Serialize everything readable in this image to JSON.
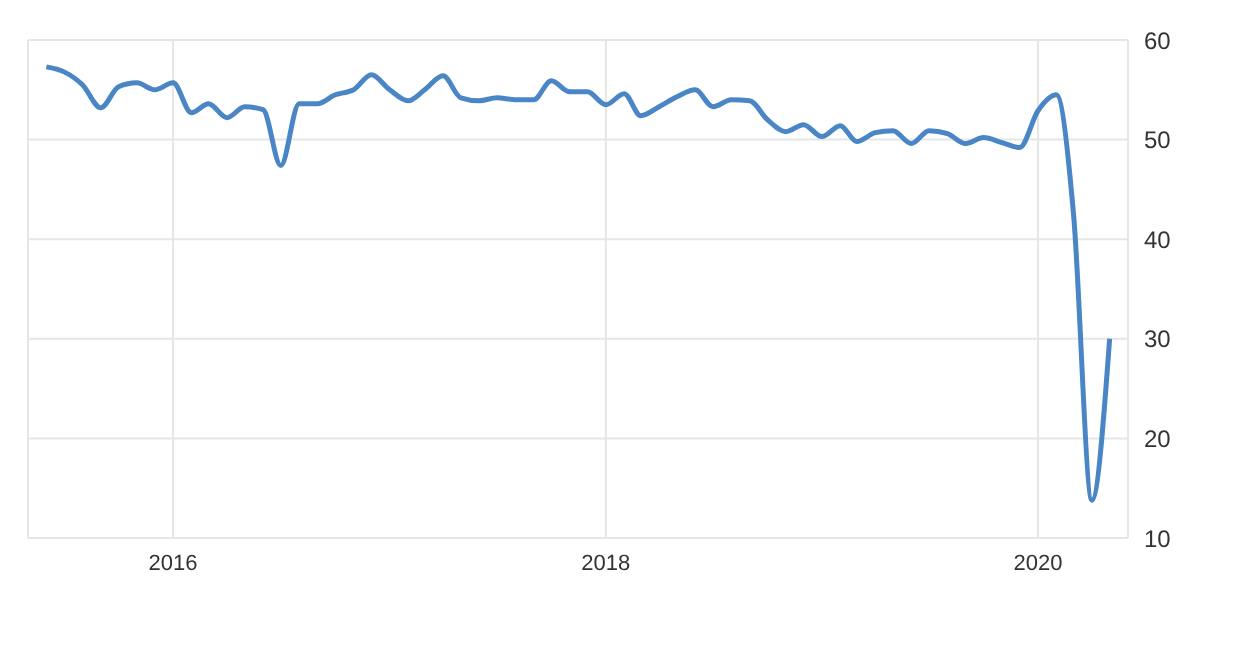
{
  "chart_data": {
    "type": "line",
    "x": [
      "2015-06",
      "2015-07",
      "2015-08",
      "2015-09",
      "2015-10",
      "2015-11",
      "2015-12",
      "2016-01",
      "2016-02",
      "2016-03",
      "2016-04",
      "2016-05",
      "2016-06",
      "2016-07",
      "2016-08",
      "2016-09",
      "2016-10",
      "2016-11",
      "2016-12",
      "2017-01",
      "2017-02",
      "2017-03",
      "2017-04",
      "2017-05",
      "2017-06",
      "2017-07",
      "2017-08",
      "2017-09",
      "2017-10",
      "2017-11",
      "2017-12",
      "2018-01",
      "2018-02",
      "2018-03",
      "2018-04",
      "2018-05",
      "2018-06",
      "2018-07",
      "2018-08",
      "2018-09",
      "2018-10",
      "2018-11",
      "2018-12",
      "2019-01",
      "2019-02",
      "2019-03",
      "2019-04",
      "2019-05",
      "2019-06",
      "2019-07",
      "2019-08",
      "2019-09",
      "2019-10",
      "2019-11",
      "2019-12",
      "2020-01",
      "2020-02",
      "2020-03",
      "2020-04",
      "2020-05"
    ],
    "series": [
      {
        "color": "#4a86c5",
        "values": [
          57.3,
          56.8,
          55.5,
          53.2,
          55.3,
          55.7,
          55.0,
          55.7,
          52.7,
          53.6,
          52.2,
          53.3,
          53.0,
          47.4,
          53.6,
          53.6,
          54.5,
          55.0,
          56.5,
          55.0,
          53.9,
          55.0,
          56.4,
          54.2,
          53.9,
          54.2,
          54.0,
          54.0,
          55.9,
          54.8,
          54.8,
          53.5,
          54.6,
          52.4,
          53.3,
          54.3,
          55.0,
          53.3,
          54.0,
          53.9,
          52.0,
          50.8,
          51.5,
          50.3,
          51.4,
          49.8,
          50.7,
          50.9,
          49.6,
          50.9,
          50.6,
          49.6,
          50.2,
          49.7,
          49.2,
          52.9,
          54.5,
          42.5,
          13.8,
          30.0
        ]
      }
    ],
    "xlim": [
      "2015-05",
      "2020-06"
    ],
    "xticks": [
      "2016",
      "2018",
      "2020"
    ],
    "ylim": [
      10,
      60
    ],
    "yticks": [
      10,
      20,
      30,
      40,
      50,
      60
    ],
    "grid": true,
    "line_style": "solid",
    "marker": "none"
  }
}
